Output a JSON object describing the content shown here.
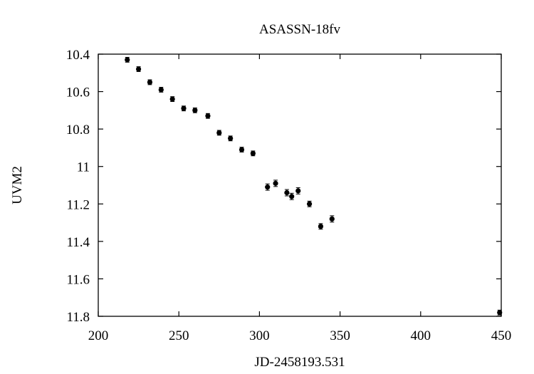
{
  "chart_data": {
    "type": "scatter",
    "title": "ASASSN-18fv",
    "xlabel": "JD-2458193.531",
    "ylabel": "UVM2",
    "xlim": [
      200,
      450
    ],
    "ylim": [
      10.4,
      11.8
    ],
    "y_inverted": true,
    "grid": false,
    "legend": "none",
    "x_ticks": [
      200,
      250,
      300,
      350,
      400,
      450
    ],
    "y_ticks": [
      10.4,
      10.6,
      10.8,
      11,
      11.2,
      11.4,
      11.6,
      11.8
    ],
    "x_tick_labels": [
      "200",
      "250",
      "300",
      "350",
      "400",
      "450"
    ],
    "y_tick_labels": [
      "10.4",
      "10.6",
      "10.8",
      "11",
      "11.2",
      "11.4",
      "11.6",
      "11.8"
    ],
    "colors": {
      "marker": "#000000",
      "axis": "#000000"
    },
    "series": [
      {
        "x": [
          218,
          225,
          232,
          239,
          246,
          253,
          260,
          268,
          275,
          282,
          289,
          296,
          305,
          310,
          317,
          320,
          324,
          331,
          338,
          345,
          449
        ],
        "y": [
          10.43,
          10.48,
          10.55,
          10.59,
          10.64,
          10.69,
          10.7,
          10.73,
          10.82,
          10.85,
          10.91,
          10.93,
          11.11,
          11.09,
          11.14,
          11.16,
          11.13,
          11.2,
          11.32,
          11.28,
          11.78
        ],
        "err": [
          0.013,
          0.013,
          0.013,
          0.013,
          0.013,
          0.013,
          0.013,
          0.013,
          0.013,
          0.013,
          0.013,
          0.013,
          0.017,
          0.017,
          0.017,
          0.017,
          0.017,
          0.015,
          0.015,
          0.017,
          0.013
        ]
      }
    ]
  }
}
